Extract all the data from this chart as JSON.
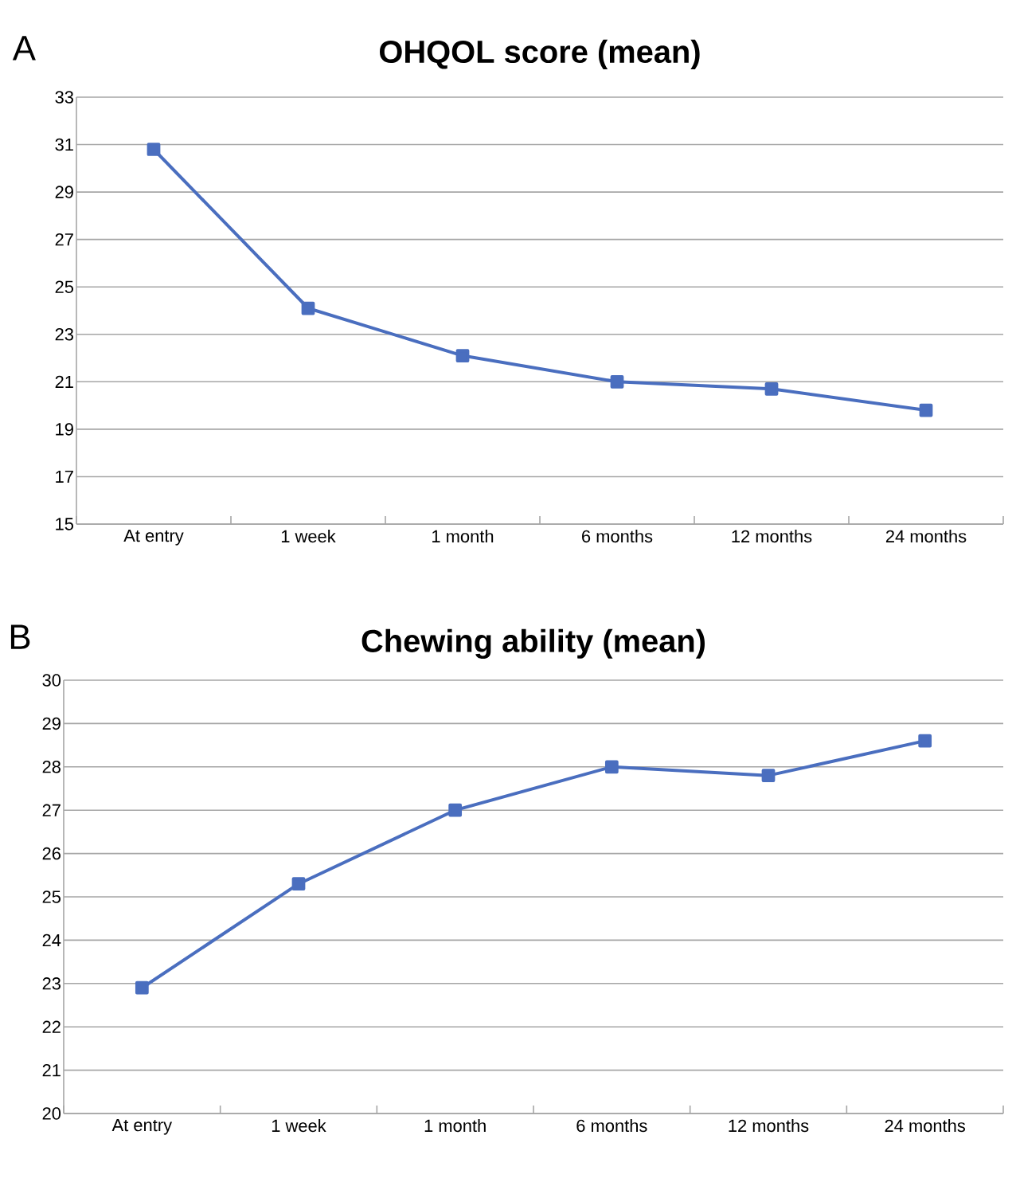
{
  "chart_data": [
    {
      "type": "line",
      "title": "OHQOL score  (mean)",
      "annotations": [
        "A"
      ],
      "categories": [
        "At entry",
        "1 week",
        "1 month",
        "6 months",
        "12 months",
        "24 months"
      ],
      "series": [
        {
          "color": "#4a6ebf",
          "values": [
            30.8,
            24.1,
            22.1,
            21.0,
            20.7,
            19.8
          ]
        }
      ],
      "ylim": [
        15,
        33
      ],
      "yticks": [
        15,
        17,
        19,
        21,
        23,
        25,
        27,
        29,
        31,
        33
      ],
      "grid": "y",
      "marker": "square",
      "line_style": "solid"
    },
    {
      "type": "line",
      "title": "Chewing ability (mean)",
      "annotations": [
        "B"
      ],
      "categories": [
        "At entry",
        "1 week",
        "1 month",
        "6 months",
        "12 months",
        "24 months"
      ],
      "series": [
        {
          "color": "#4a6ebf",
          "values": [
            22.9,
            25.3,
            27.0,
            28.0,
            27.8,
            28.6
          ]
        }
      ],
      "ylim": [
        20,
        30
      ],
      "yticks": [
        20,
        21,
        22,
        23,
        24,
        25,
        26,
        27,
        28,
        29,
        30
      ],
      "grid": "y",
      "marker": "square",
      "line_style": "solid"
    }
  ]
}
